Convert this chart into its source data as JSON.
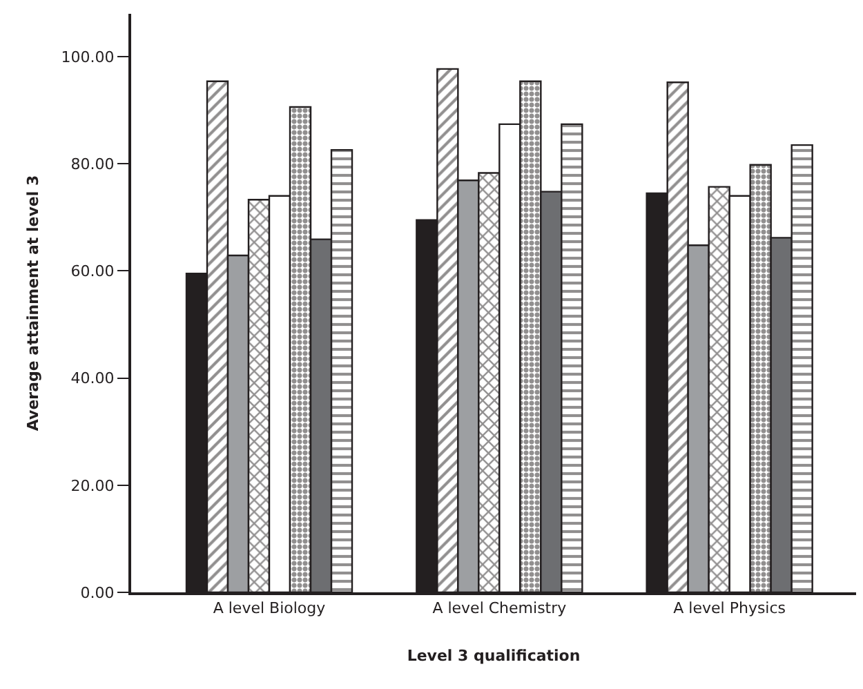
{
  "chart_data": {
    "type": "bar",
    "xlabel": "Level 3 qualification",
    "ylabel": "Average attainment at level 3",
    "categories": [
      "A level Biology",
      "A level Chemistry",
      "A level Physics"
    ],
    "series": [
      {
        "color": "#231f20",
        "values": [
          59.5,
          69.5,
          74.5
        ]
      },
      {
        "color": "#231f20",
        "values": [
          95.4,
          97.7,
          95.2
        ]
      },
      {
        "color": "#9d9fa2",
        "values": [
          62.9,
          76.9,
          64.8
        ]
      },
      {
        "color": "#231f20",
        "values": [
          73.3,
          78.3,
          75.7
        ]
      },
      {
        "color": "#ffffff",
        "values": [
          74.0,
          87.4,
          74.0
        ]
      },
      {
        "color": "#231f20",
        "values": [
          90.6,
          95.4,
          79.8
        ]
      },
      {
        "color": "#6d6e71",
        "values": [
          65.9,
          74.8,
          66.2
        ]
      },
      {
        "color": "#231f20",
        "values": [
          82.6,
          87.4,
          83.5
        ]
      }
    ],
    "ylim": [
      0,
      108
    ],
    "yticks": [
      {
        "value": 0,
        "label": "0.00"
      },
      {
        "value": 20,
        "label": "20.00"
      },
      {
        "value": 40,
        "label": "40.00"
      },
      {
        "value": 60,
        "label": "60.00"
      },
      {
        "value": 80,
        "label": "80.00"
      },
      {
        "value": 100,
        "label": "100.00"
      }
    ],
    "tick_labels": [
      "x",
      "y"
    ]
  }
}
